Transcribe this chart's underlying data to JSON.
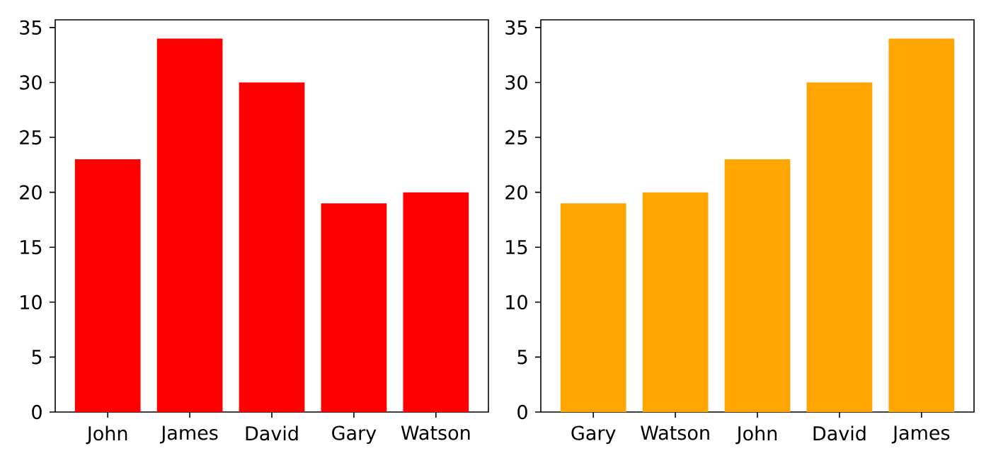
{
  "chart_data": [
    {
      "type": "bar",
      "categories": [
        "John",
        "James",
        "David",
        "Gary",
        "Watson"
      ],
      "values": [
        23,
        34,
        30,
        19,
        20
      ],
      "color": "#ff0000",
      "ylim": [
        0,
        35.7
      ],
      "yticks": [
        0,
        5,
        10,
        15,
        20,
        25,
        30,
        35
      ]
    },
    {
      "type": "bar",
      "categories": [
        "Gary",
        "Watson",
        "John",
        "David",
        "James"
      ],
      "values": [
        19,
        20,
        23,
        30,
        34
      ],
      "color": "#ffa500",
      "ylim": [
        0,
        35.7
      ],
      "yticks": [
        0,
        5,
        10,
        15,
        20,
        25,
        30,
        35
      ]
    }
  ]
}
